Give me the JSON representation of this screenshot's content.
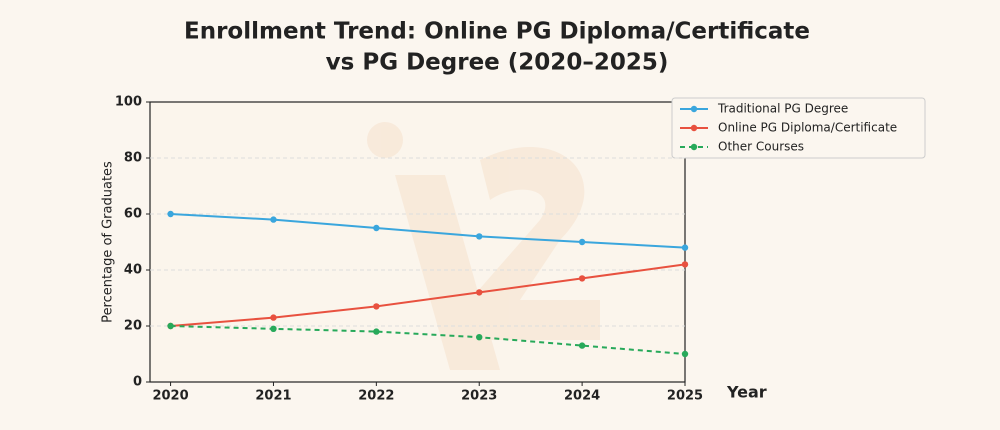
{
  "chart_data": {
    "type": "line",
    "title_lines": [
      "Enrollment Trend: Online PG Diploma/Certificate",
      "vs PG Degree (2020–2025)"
    ],
    "x_label": "Year",
    "y_label": "Percentage of Graduates",
    "x": [
      2020,
      2021,
      2022,
      2023,
      2024,
      2025
    ],
    "series": [
      {
        "name": "Traditional PG Degree",
        "color": "#3aa6dd",
        "linestyle": "solid",
        "values": [
          60,
          58,
          55,
          52,
          50,
          48
        ]
      },
      {
        "name": "Online PG Diploma/Certificate",
        "color": "#e8513f",
        "linestyle": "solid",
        "values": [
          20,
          23,
          27,
          32,
          37,
          42
        ]
      },
      {
        "name": "Other Courses",
        "color": "#27a95a",
        "linestyle": "dashed",
        "values": [
          20,
          19,
          18,
          16,
          13,
          10
        ]
      }
    ],
    "xlim": [
      2019.8,
      2025
    ],
    "xticks": [
      2020,
      2021,
      2022,
      2023,
      2024,
      2025
    ],
    "ylim": [
      0,
      100
    ],
    "yticks": [
      0,
      20,
      40,
      60,
      80,
      100
    ],
    "grid": true,
    "legend": "upper right outside"
  }
}
